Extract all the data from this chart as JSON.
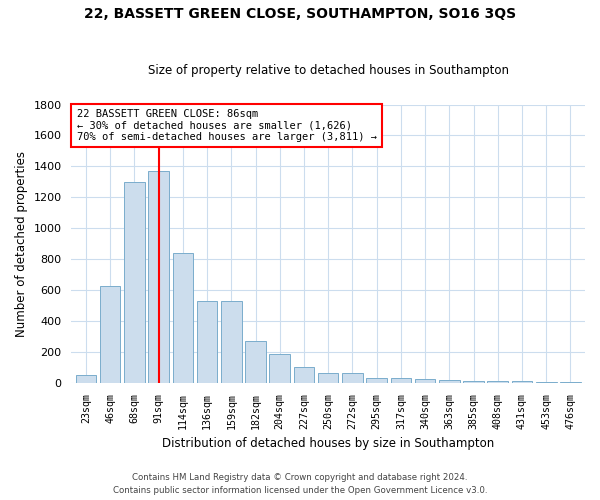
{
  "title1": "22, BASSETT GREEN CLOSE, SOUTHAMPTON, SO16 3QS",
  "title2": "Size of property relative to detached houses in Southampton",
  "xlabel": "Distribution of detached houses by size in Southampton",
  "ylabel": "Number of detached properties",
  "categories": [
    "23sqm",
    "46sqm",
    "68sqm",
    "91sqm",
    "114sqm",
    "136sqm",
    "159sqm",
    "182sqm",
    "204sqm",
    "227sqm",
    "250sqm",
    "272sqm",
    "295sqm",
    "317sqm",
    "340sqm",
    "363sqm",
    "385sqm",
    "408sqm",
    "431sqm",
    "453sqm",
    "476sqm"
  ],
  "values": [
    50,
    630,
    1300,
    1370,
    840,
    530,
    530,
    270,
    185,
    105,
    65,
    65,
    30,
    30,
    25,
    20,
    15,
    10,
    10,
    5,
    5
  ],
  "bar_color": "#ccdded",
  "bar_edge_color": "#7aadcc",
  "vline_x_index": 3,
  "vline_color": "red",
  "annotation_text": "22 BASSETT GREEN CLOSE: 86sqm\n← 30% of detached houses are smaller (1,626)\n70% of semi-detached houses are larger (3,811) →",
  "annotation_box_color": "white",
  "annotation_box_edge": "red",
  "ylim": [
    0,
    1800
  ],
  "yticks": [
    0,
    200,
    400,
    600,
    800,
    1000,
    1200,
    1400,
    1600,
    1800
  ],
  "footer1": "Contains HM Land Registry data © Crown copyright and database right 2024.",
  "footer2": "Contains public sector information licensed under the Open Government Licence v3.0.",
  "bg_color": "#ffffff",
  "plot_bg_color": "#ffffff",
  "grid_color": "#ccddee"
}
